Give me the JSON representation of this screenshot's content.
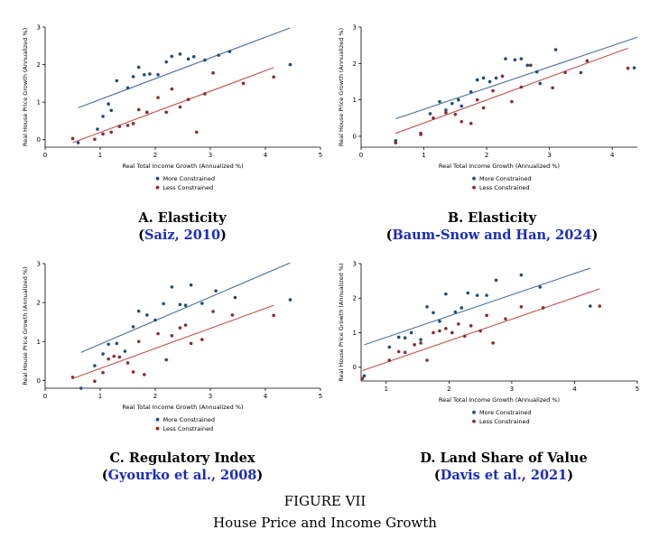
{
  "colors": {
    "constrained": "#1f4e79",
    "less": "#8b2a2e",
    "fit_constrained": "#4a6fa0",
    "fit_less": "#c0504d",
    "citation": "#1a2bbf"
  },
  "figure": {
    "label": "FIGURE VII",
    "title": "House Price and Income Growth"
  },
  "panels": [
    {
      "caption": {
        "letter": "A. Elasticity",
        "open": "(",
        "cite": "Saiz, 2010",
        "close": ")"
      },
      "chart_data": {
        "type": "scatter",
        "xlabel": "Real Total Income Growth (Annualized %)",
        "ylabel": "Real House Price Growth (Annualized %)",
        "xlim": [
          0,
          5
        ],
        "ylim": [
          -0.2,
          3
        ],
        "xticks": [
          0,
          1,
          2,
          3,
          4,
          5
        ],
        "yticks": [
          0,
          1,
          2,
          3
        ],
        "legend": [
          "More Constrained",
          "Less Constrained"
        ],
        "series": [
          {
            "name": "More Constrained",
            "points": [
              [
                0.6,
                -0.08
              ],
              [
                0.95,
                0.28
              ],
              [
                1.05,
                0.62
              ],
              [
                1.15,
                0.95
              ],
              [
                1.2,
                0.78
              ],
              [
                1.3,
                1.57
              ],
              [
                1.5,
                1.38
              ],
              [
                1.6,
                1.68
              ],
              [
                1.7,
                1.93
              ],
              [
                1.8,
                1.73
              ],
              [
                1.9,
                1.75
              ],
              [
                2.05,
                1.73
              ],
              [
                2.2,
                2.07
              ],
              [
                2.3,
                2.22
              ],
              [
                2.45,
                2.28
              ],
              [
                2.6,
                2.15
              ],
              [
                2.7,
                2.21
              ],
              [
                2.9,
                2.12
              ],
              [
                3.15,
                2.25
              ],
              [
                3.35,
                2.35
              ],
              [
                4.45,
                2.0
              ]
            ],
            "fit": [
              [
                0.6,
                0.85
              ],
              [
                4.45,
                2.98
              ]
            ]
          },
          {
            "name": "Less Constrained",
            "points": [
              [
                0.5,
                0.03
              ],
              [
                0.9,
                0.01
              ],
              [
                1.05,
                0.15
              ],
              [
                1.2,
                0.2
              ],
              [
                1.35,
                0.35
              ],
              [
                1.5,
                0.38
              ],
              [
                1.6,
                0.43
              ],
              [
                1.7,
                0.8
              ],
              [
                1.85,
                0.73
              ],
              [
                2.05,
                1.12
              ],
              [
                2.2,
                0.73
              ],
              [
                2.3,
                1.35
              ],
              [
                2.45,
                0.87
              ],
              [
                2.6,
                1.07
              ],
              [
                2.75,
                0.2
              ],
              [
                2.9,
                1.22
              ],
              [
                3.05,
                1.78
              ],
              [
                3.6,
                1.5
              ],
              [
                4.15,
                1.67
              ]
            ],
            "fit": [
              [
                0.5,
                -0.08
              ],
              [
                4.15,
                1.92
              ]
            ]
          }
        ]
      }
    },
    {
      "caption": {
        "letter": "B. Elasticity",
        "open": "(",
        "cite": "Baum-Snow and Han, 2024",
        "close": ")"
      },
      "chart_data": {
        "type": "scatter",
        "xlabel": "Real Total Income Growth (Annualized %)",
        "ylabel": "Real House Price Growth (Annualized %)",
        "xlim": [
          0,
          4.4
        ],
        "ylim": [
          -0.3,
          3
        ],
        "xticks": [
          0,
          1,
          2,
          3,
          4
        ],
        "yticks": [
          0,
          1,
          2,
          3
        ],
        "legend": [
          "More Constrained",
          "Less Constrained"
        ],
        "series": [
          {
            "name": "More Constrained",
            "points": [
              [
                0.55,
                -0.12
              ],
              [
                0.95,
                0.08
              ],
              [
                1.1,
                0.62
              ],
              [
                1.25,
                0.95
              ],
              [
                1.35,
                0.72
              ],
              [
                1.45,
                0.9
              ],
              [
                1.55,
                1.0
              ],
              [
                1.6,
                0.83
              ],
              [
                1.75,
                1.22
              ],
              [
                1.85,
                1.55
              ],
              [
                1.95,
                1.6
              ],
              [
                2.05,
                1.5
              ],
              [
                2.15,
                1.6
              ],
              [
                2.3,
                2.13
              ],
              [
                2.45,
                2.1
              ],
              [
                2.55,
                2.13
              ],
              [
                2.65,
                1.95
              ],
              [
                2.8,
                1.77
              ],
              [
                2.85,
                1.45
              ],
              [
                3.1,
                2.38
              ],
              [
                3.5,
                1.75
              ],
              [
                4.35,
                1.88
              ]
            ],
            "fit": [
              [
                0.55,
                0.48
              ],
              [
                4.4,
                2.72
              ]
            ]
          },
          {
            "name": "Less Constrained",
            "points": [
              [
                0.55,
                -0.18
              ],
              [
                0.95,
                0.05
              ],
              [
                1.15,
                0.5
              ],
              [
                1.35,
                0.65
              ],
              [
                1.5,
                0.6
              ],
              [
                1.6,
                0.4
              ],
              [
                1.75,
                0.35
              ],
              [
                1.85,
                1.0
              ],
              [
                1.95,
                0.78
              ],
              [
                2.1,
                1.25
              ],
              [
                2.25,
                1.65
              ],
              [
                2.4,
                0.95
              ],
              [
                2.55,
                1.35
              ],
              [
                2.7,
                1.95
              ],
              [
                3.05,
                1.33
              ],
              [
                3.25,
                1.75
              ],
              [
                3.6,
                2.07
              ],
              [
                4.25,
                1.87
              ]
            ],
            "fit": [
              [
                0.55,
                0.08
              ],
              [
                4.25,
                2.42
              ]
            ]
          }
        ]
      }
    },
    {
      "caption": {
        "letter": "C. Regulatory Index",
        "open": "(",
        "cite": "Gyourko et al., 2008",
        "close": ")"
      },
      "chart_data": {
        "type": "scatter",
        "xlabel": "Real Total Income Growth (Annualized %)",
        "ylabel": "Real House Price Growth (Annualized %)",
        "xlim": [
          0,
          5
        ],
        "ylim": [
          -0.2,
          3
        ],
        "xticks": [
          0,
          1,
          2,
          3,
          4,
          5
        ],
        "yticks": [
          0,
          1,
          2,
          3
        ],
        "legend": [
          "More Constrained",
          "Less Constrained"
        ],
        "series": [
          {
            "name": "More Constrained",
            "points": [
              [
                0.65,
                -0.2
              ],
              [
                0.9,
                0.38
              ],
              [
                1.05,
                0.68
              ],
              [
                1.15,
                0.93
              ],
              [
                1.3,
                0.95
              ],
              [
                1.45,
                0.75
              ],
              [
                1.6,
                1.38
              ],
              [
                1.7,
                1.78
              ],
              [
                1.85,
                1.68
              ],
              [
                2.0,
                1.55
              ],
              [
                2.15,
                1.97
              ],
              [
                2.3,
                2.4
              ],
              [
                2.45,
                1.95
              ],
              [
                2.55,
                1.93
              ],
              [
                2.65,
                2.45
              ],
              [
                2.85,
                1.98
              ],
              [
                3.1,
                2.3
              ],
              [
                3.45,
                2.13
              ],
              [
                4.45,
                2.07
              ]
            ],
            "fit": [
              [
                0.65,
                0.72
              ],
              [
                4.45,
                3.02
              ]
            ]
          },
          {
            "name": "Less Constrained",
            "points": [
              [
                0.5,
                0.08
              ],
              [
                0.9,
                -0.02
              ],
              [
                1.05,
                0.2
              ],
              [
                1.15,
                0.55
              ],
              [
                1.25,
                0.62
              ],
              [
                1.35,
                0.6
              ],
              [
                1.5,
                0.45
              ],
              [
                1.6,
                0.22
              ],
              [
                1.7,
                1.0
              ],
              [
                1.8,
                0.15
              ],
              [
                2.05,
                1.2
              ],
              [
                2.2,
                0.53
              ],
              [
                2.3,
                1.15
              ],
              [
                2.45,
                1.35
              ],
              [
                2.55,
                1.42
              ],
              [
                2.65,
                0.95
              ],
              [
                2.85,
                1.05
              ],
              [
                3.05,
                1.77
              ],
              [
                3.4,
                1.68
              ],
              [
                4.15,
                1.67
              ]
            ],
            "fit": [
              [
                0.5,
                0.05
              ],
              [
                4.15,
                1.93
              ]
            ]
          }
        ]
      }
    },
    {
      "caption": {
        "letter": "D. Land Share of Value",
        "open": "(",
        "cite": "Davis et al., 2021",
        "close": ")"
      },
      "chart_data": {
        "type": "scatter",
        "xlabel": "Real Total Income Growth (Annualized %)",
        "ylabel": "Real House Price Growth (Annualized %)",
        "xlim": [
          0.6,
          5
        ],
        "ylim": [
          -0.4,
          3
        ],
        "xticks": [
          1,
          2,
          3,
          4,
          5
        ],
        "yticks": [
          0,
          1,
          2,
          3
        ],
        "legend": [
          "More Constrained",
          "Less Constrained"
        ],
        "series": [
          {
            "name": "More Constrained",
            "points": [
              [
                0.65,
                -0.25
              ],
              [
                1.05,
                0.58
              ],
              [
                1.2,
                0.87
              ],
              [
                1.3,
                0.85
              ],
              [
                1.4,
                1.0
              ],
              [
                1.55,
                0.8
              ],
              [
                1.65,
                1.75
              ],
              [
                1.75,
                1.58
              ],
              [
                1.85,
                1.33
              ],
              [
                1.95,
                2.12
              ],
              [
                2.1,
                1.6
              ],
              [
                2.2,
                1.72
              ],
              [
                2.3,
                2.15
              ],
              [
                2.45,
                2.08
              ],
              [
                2.6,
                2.08
              ],
              [
                2.75,
                2.52
              ],
              [
                3.15,
                2.67
              ],
              [
                3.45,
                2.32
              ],
              [
                4.25,
                1.77
              ]
            ],
            "fit": [
              [
                0.65,
                0.65
              ],
              [
                4.25,
                2.87
              ]
            ]
          },
          {
            "name": "Less Constrained",
            "points": [
              [
                0.62,
                -0.33
              ],
              [
                1.05,
                0.2
              ],
              [
                1.2,
                0.45
              ],
              [
                1.3,
                0.43
              ],
              [
                1.45,
                0.65
              ],
              [
                1.55,
                0.7
              ],
              [
                1.65,
                0.2
              ],
              [
                1.75,
                1.0
              ],
              [
                1.85,
                1.05
              ],
              [
                1.95,
                1.12
              ],
              [
                2.05,
                1.0
              ],
              [
                2.15,
                1.25
              ],
              [
                2.25,
                0.9
              ],
              [
                2.35,
                1.2
              ],
              [
                2.5,
                1.05
              ],
              [
                2.6,
                1.5
              ],
              [
                2.7,
                0.7
              ],
              [
                2.9,
                1.4
              ],
              [
                3.15,
                1.75
              ],
              [
                3.5,
                1.72
              ],
              [
                4.4,
                1.77
              ]
            ],
            "fit": [
              [
                0.62,
                -0.1
              ],
              [
                4.4,
                2.27
              ]
            ]
          }
        ]
      }
    }
  ]
}
